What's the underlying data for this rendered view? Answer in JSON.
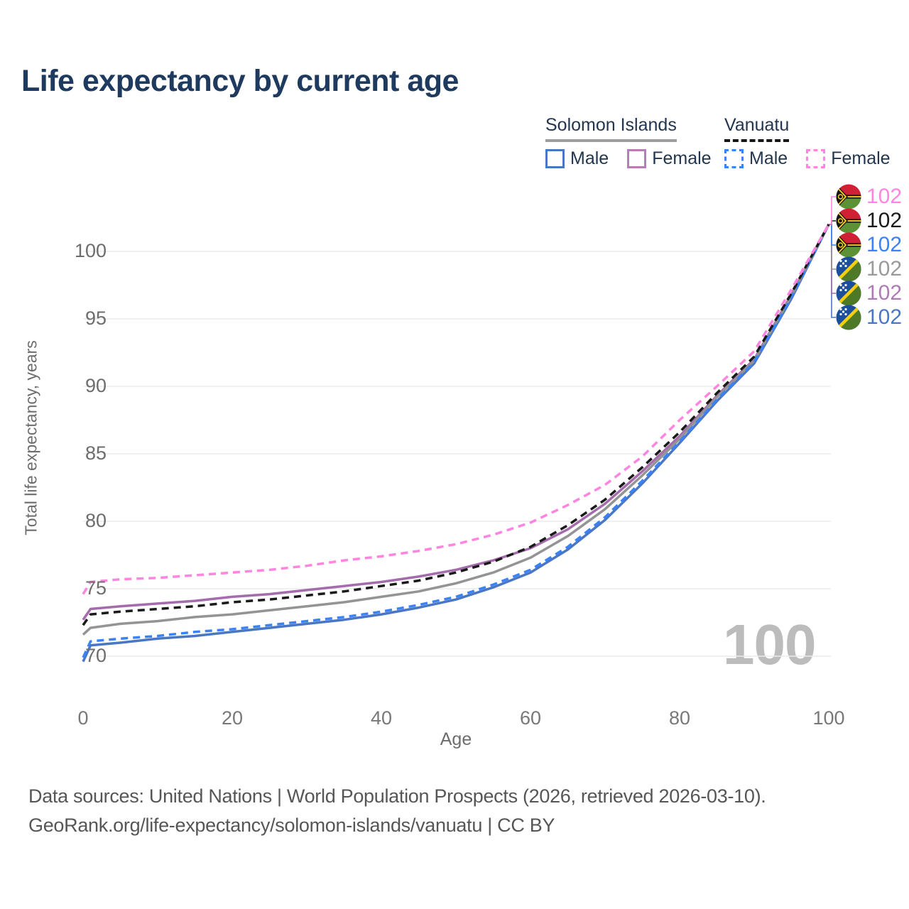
{
  "title": "Life expectancy by current age",
  "legend": {
    "groups": [
      {
        "country": "Solomon Islands",
        "line_style": "solid",
        "items": [
          {
            "label": "Male",
            "color": "#4a77c4",
            "dash": false
          },
          {
            "label": "Female",
            "color": "#b57fb5",
            "dash": false
          }
        ]
      },
      {
        "country": "Vanuatu",
        "line_style": "dashed",
        "items": [
          {
            "label": "Male",
            "color": "#3b82f6",
            "dash": true
          },
          {
            "label": "Female",
            "color": "#ff85e0",
            "dash": true
          }
        ]
      }
    ]
  },
  "age_indicator": "100",
  "footer": {
    "line1": "Data sources: United Nations | World Population Prospects (2026, retrieved 2026-03-10).",
    "line2": "GeoRank.org/life-expectancy/solomon-islands/vanuatu | CC BY"
  },
  "chart_data": {
    "type": "line",
    "title": "Life expectancy by current age",
    "xlabel": "Age",
    "ylabel": "Total life expectancy, years",
    "x_ticks": [
      0,
      20,
      40,
      60,
      80,
      100
    ],
    "y_ticks": [
      70,
      75,
      80,
      85,
      90,
      95,
      100
    ],
    "xlim": [
      0,
      100
    ],
    "ylim": [
      69,
      103
    ],
    "grid": "horizontal",
    "legend_position": "top-right",
    "ages": [
      0,
      1,
      5,
      10,
      15,
      20,
      25,
      30,
      35,
      40,
      45,
      50,
      55,
      60,
      65,
      70,
      75,
      80,
      85,
      90,
      95,
      100
    ],
    "series": [
      {
        "name": "Vanuatu Female",
        "country": "Vanuatu",
        "sex": "Female",
        "flag_icon": "vanuatu-flag-icon",
        "color": "#ff85e0",
        "dash": true,
        "end_label": "102",
        "end_label_color": "#ff85e0",
        "values": [
          74.6,
          75.5,
          75.7,
          75.8,
          76.0,
          76.2,
          76.4,
          76.7,
          77.1,
          77.4,
          77.8,
          78.3,
          79.0,
          79.9,
          81.2,
          82.7,
          84.8,
          87.5,
          90.0,
          92.6,
          97.2,
          102
        ]
      },
      {
        "name": "Vanuatu Both sexes",
        "country": "Vanuatu",
        "sex": "Both",
        "flag_icon": "vanuatu-flag-icon",
        "color": "#1a1a1a",
        "dash": true,
        "end_label": "102",
        "end_label_color": "#1a1a1a",
        "values": [
          72.3,
          73.1,
          73.3,
          73.5,
          73.7,
          74.0,
          74.2,
          74.5,
          74.8,
          75.2,
          75.6,
          76.2,
          77.0,
          78.1,
          79.7,
          81.6,
          84.0,
          86.6,
          89.5,
          92.2,
          96.9,
          102
        ]
      },
      {
        "name": "Vanuatu Male",
        "country": "Vanuatu",
        "sex": "Male",
        "flag_icon": "vanuatu-flag-icon",
        "color": "#3b82f6",
        "dash": true,
        "end_label": "102",
        "end_label_color": "#3b82f6",
        "values": [
          69.9,
          71.1,
          71.3,
          71.5,
          71.8,
          72.0,
          72.3,
          72.6,
          72.9,
          73.3,
          73.8,
          74.4,
          75.3,
          76.4,
          78.1,
          80.3,
          83.0,
          85.9,
          89.0,
          91.8,
          96.6,
          102
        ]
      },
      {
        "name": "Solomon Islands Both sexes",
        "country": "Solomon Islands",
        "sex": "Both",
        "flag_icon": "solomon-islands-flag-icon",
        "color": "#949494",
        "dash": false,
        "end_label": "102",
        "end_label_color": "#9a9a9a",
        "values": [
          71.6,
          72.1,
          72.4,
          72.6,
          72.9,
          73.1,
          73.4,
          73.7,
          74.0,
          74.4,
          74.8,
          75.4,
          76.2,
          77.3,
          78.9,
          80.9,
          83.4,
          86.1,
          89.2,
          91.9,
          96.7,
          102
        ]
      },
      {
        "name": "Solomon Islands Female",
        "country": "Solomon Islands",
        "sex": "Female",
        "flag_icon": "solomon-islands-flag-icon",
        "color": "#a56cad",
        "dash": false,
        "end_label": "102",
        "end_label_color": "#b07ab8",
        "values": [
          72.7,
          73.5,
          73.7,
          73.9,
          74.1,
          74.4,
          74.6,
          74.9,
          75.2,
          75.5,
          75.9,
          76.4,
          77.1,
          78.0,
          79.4,
          81.3,
          83.7,
          86.3,
          89.3,
          92.0,
          96.8,
          102
        ]
      },
      {
        "name": "Solomon Islands Male",
        "country": "Solomon Islands",
        "sex": "Male",
        "flag_icon": "solomon-islands-flag-icon",
        "color": "#4a77c4",
        "dash": false,
        "end_label": "102",
        "end_label_color": "#4a77c4",
        "values": [
          69.6,
          70.8,
          71.0,
          71.3,
          71.5,
          71.8,
          72.1,
          72.4,
          72.7,
          73.1,
          73.6,
          74.2,
          75.1,
          76.2,
          77.9,
          80.1,
          82.8,
          85.8,
          88.9,
          91.7,
          96.5,
          102
        ]
      }
    ]
  }
}
